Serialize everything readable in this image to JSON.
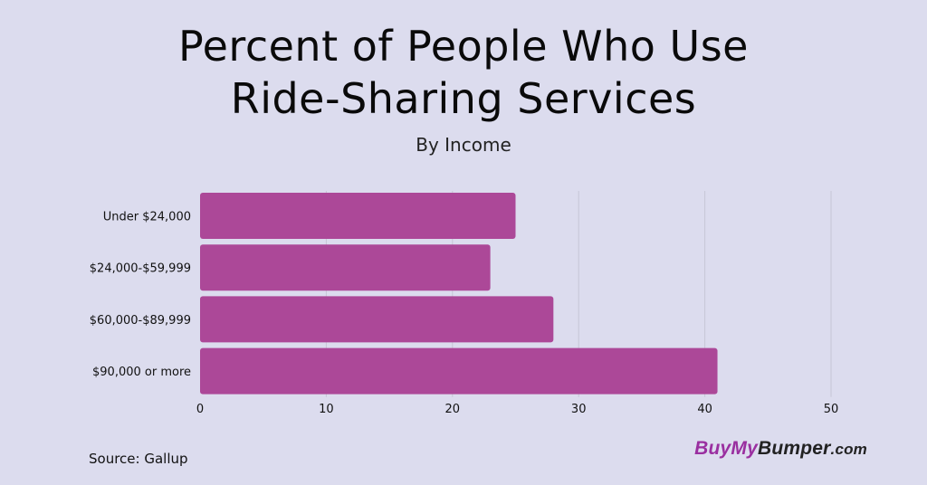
{
  "title_lines": [
    "Percent of People Who Use",
    "Ride-Sharing Services"
  ],
  "subtitle": "By Income",
  "source": "Source: Gallup",
  "brand": {
    "part1": "BuyMy",
    "part2": "Bumper",
    "part3": ".com"
  },
  "colors": {
    "background": "#dcdcee",
    "bar": "#ac4898",
    "grid": "#c6c6d6",
    "brand_accent": "#9a2fa0"
  },
  "chart_data": {
    "type": "bar",
    "orientation": "horizontal",
    "categories": [
      "Under $24,000",
      "$24,000-$59,999",
      "$60,000-$89,999",
      "$90,000 or more"
    ],
    "values": [
      25,
      23,
      28,
      41
    ],
    "xlim": [
      0,
      50
    ],
    "xticks": [
      0,
      10,
      20,
      30,
      40,
      50
    ],
    "grid": true
  }
}
